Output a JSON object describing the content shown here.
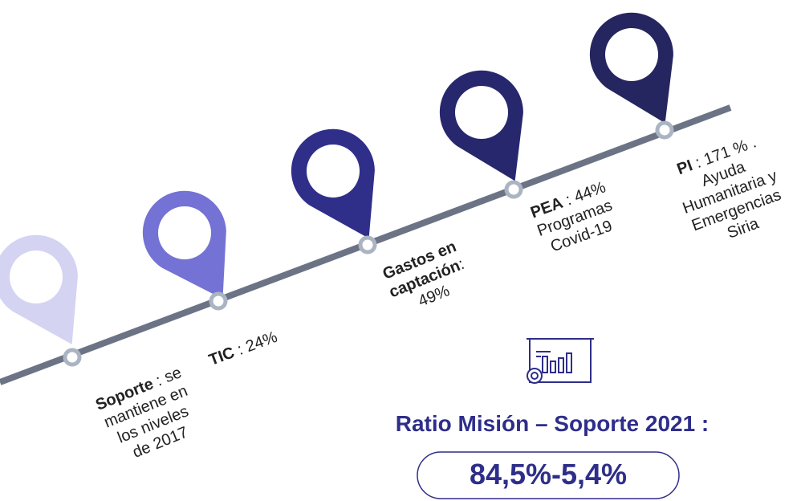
{
  "milestones": [
    {
      "lines": [
        [
          {
            "text": "Soporte",
            "bold": true
          },
          {
            "text": " : se",
            "bold": false
          }
        ],
        [
          {
            "text": "mantiene en",
            "bold": false
          }
        ],
        [
          {
            "text": "los niveles",
            "bold": false
          }
        ],
        [
          {
            "text": "de 2017",
            "bold": false
          }
        ]
      ]
    },
    {
      "lines": [
        [
          {
            "text": "TIC",
            "bold": true
          },
          {
            "text": " : 24%",
            "bold": false
          }
        ]
      ]
    },
    {
      "lines": [
        [
          {
            "text": "Gastos en",
            "bold": true
          }
        ],
        [
          {
            "text": "captación",
            "bold": true
          },
          {
            "text": ":",
            "bold": false
          }
        ],
        [
          {
            "text": "49%",
            "bold": false
          }
        ]
      ]
    },
    {
      "lines": [
        [
          {
            "text": "PEA",
            "bold": true
          },
          {
            "text": " : 44%",
            "bold": false
          }
        ],
        [
          {
            "text": "Programas",
            "bold": false
          }
        ],
        [
          {
            "text": "Covid-19",
            "bold": false
          }
        ]
      ]
    },
    {
      "lines": [
        [
          {
            "text": "PI",
            "bold": true
          },
          {
            "text": " : 171 % .",
            "bold": false
          }
        ],
        [
          {
            "text": "Ayuda",
            "bold": false
          }
        ],
        [
          {
            "text": "Humanitaria y",
            "bold": false
          }
        ],
        [
          {
            "text": "Emergencias",
            "bold": false
          }
        ],
        [
          {
            "text": "Siria",
            "bold": false
          }
        ]
      ]
    }
  ],
  "ratio": {
    "title": "Ratio Misión – Soporte 2021 :",
    "value": "84,5%-5,4%"
  }
}
